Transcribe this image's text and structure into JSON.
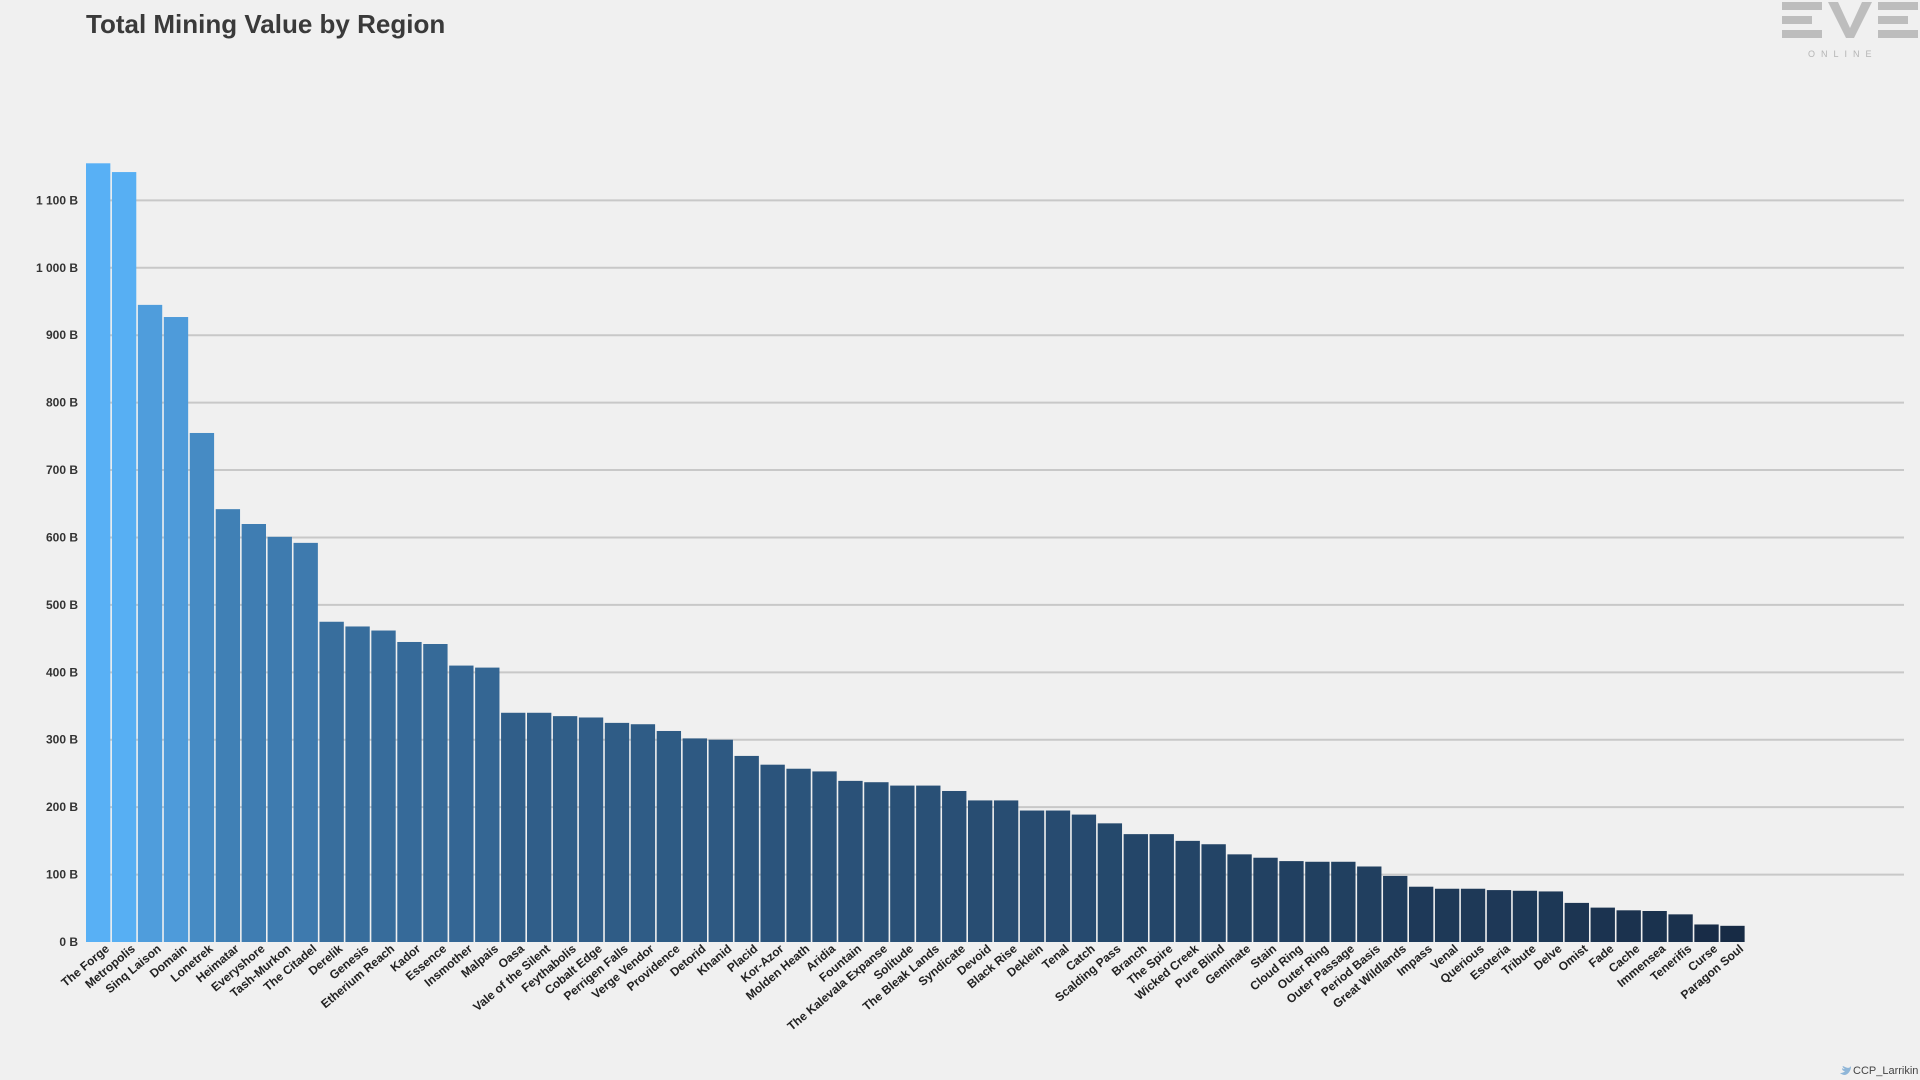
{
  "chart_data": {
    "type": "bar",
    "title": "Total Mining Value by Region",
    "xlabel": "",
    "ylabel": "",
    "ylim": [
      0,
      1160
    ],
    "yticks": [
      0,
      100,
      200,
      300,
      400,
      500,
      600,
      700,
      800,
      900,
      1000,
      1100
    ],
    "ytick_labels": [
      "0 B",
      "100 B",
      "200 B",
      "300 B",
      "400 B",
      "500 B",
      "600 B",
      "700 B",
      "800 B",
      "900 B",
      "1 000 B",
      "1 100 B"
    ],
    "grid": true,
    "categories": [
      "The Forge",
      "Metropolis",
      "Sinq Laison",
      "Domain",
      "Lonetrek",
      "Heimatar",
      "Everyshore",
      "Tash-Murkon",
      "The Citadel",
      "Derelik",
      "Genesis",
      "Etherium Reach",
      "Kador",
      "Essence",
      "Insmother",
      "Malpais",
      "Oasa",
      "Vale of the Silent",
      "Feythabolis",
      "Cobalt Edge",
      "Perrigen Falls",
      "Verge Vendor",
      "Providence",
      "Detorid",
      "Khanid",
      "Placid",
      "Kor-Azor",
      "Molden Heath",
      "Aridia",
      "Fountain",
      "The Kalevala Expanse",
      "Solitude",
      "The Bleak Lands",
      "Syndicate",
      "Devoid",
      "Black Rise",
      "Deklein",
      "Tenal",
      "Catch",
      "Scalding Pass",
      "Branch",
      "The Spire",
      "Wicked Creek",
      "Pure Blind",
      "Geminate",
      "Stain",
      "Cloud Ring",
      "Outer Ring",
      "Outer Passage",
      "Period Basis",
      "Great Wildlands",
      "Impass",
      "Venal",
      "Querious",
      "Esoteria",
      "Tribute",
      "Delve",
      "Omist",
      "Fade",
      "Cache",
      "Immensea",
      "Tenerifis",
      "Curse",
      "Paragon Soul"
    ],
    "values": [
      1155,
      1142,
      945,
      927,
      755,
      642,
      620,
      601,
      592,
      475,
      468,
      462,
      445,
      442,
      410,
      407,
      340,
      340,
      335,
      333,
      325,
      323,
      313,
      302,
      300,
      276,
      263,
      257,
      253,
      239,
      237,
      232,
      232,
      224,
      210,
      210,
      195,
      195,
      189,
      176,
      160,
      160,
      150,
      145,
      130,
      125,
      120,
      119,
      119,
      112,
      98,
      82,
      79,
      79,
      77,
      76,
      75,
      58,
      51,
      47,
      46,
      41,
      26,
      24
    ],
    "colors": {
      "max": "#58b0f5",
      "min": "#172b45",
      "grid": "#c8c8c8"
    }
  },
  "logo": {
    "main": "EVE",
    "sub": "ONLINE"
  },
  "credit": "CCP_Larrikin"
}
